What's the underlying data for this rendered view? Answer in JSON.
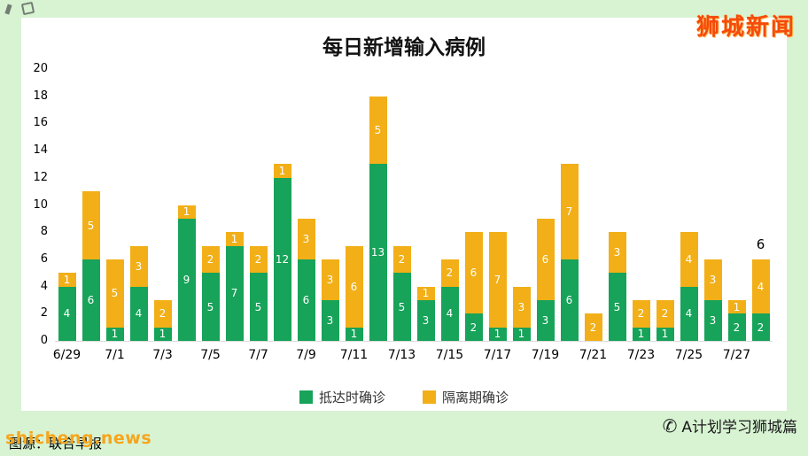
{
  "page": {
    "background": "#d7f3d2",
    "panel_background": "#ffffff"
  },
  "header": {
    "stamp": "狮城新闻",
    "stamp_color": "#f54a0d"
  },
  "chart_data": {
    "type": "bar",
    "stacked": true,
    "title": "每日新增输入病例",
    "ylim": [
      0,
      20
    ],
    "y_tick_step": 2,
    "grid": false,
    "legend_position": "bottom",
    "x_tick_labels": [
      "6/29",
      "7/1",
      "7/3",
      "7/5",
      "7/7",
      "7/9",
      "7/11",
      "7/13",
      "7/15",
      "7/17",
      "7/19",
      "7/21",
      "7/23",
      "7/25",
      "7/27"
    ],
    "x_tick_every": 2,
    "last_bar_total_label": "6",
    "series": [
      {
        "name": "抵达时确诊",
        "color": "#17a359",
        "values": [
          4,
          6,
          1,
          4,
          1,
          9,
          5,
          7,
          5,
          12,
          6,
          3,
          1,
          13,
          5,
          3,
          4,
          2,
          1,
          1,
          3,
          6,
          0,
          5,
          1,
          1,
          4,
          3,
          2,
          2
        ]
      },
      {
        "name": "隔离期确诊",
        "color": "#f2af18",
        "values": [
          1,
          5,
          5,
          3,
          2,
          1,
          2,
          1,
          2,
          1,
          3,
          3,
          6,
          5,
          2,
          1,
          2,
          6,
          7,
          3,
          6,
          7,
          2,
          3,
          2,
          2,
          4,
          3,
          1,
          4
        ]
      }
    ]
  },
  "footer": {
    "site": "shicheng.news",
    "source": "图源：联合早报",
    "account": "A计划学习狮城篇",
    "phone_icon": "✆"
  }
}
